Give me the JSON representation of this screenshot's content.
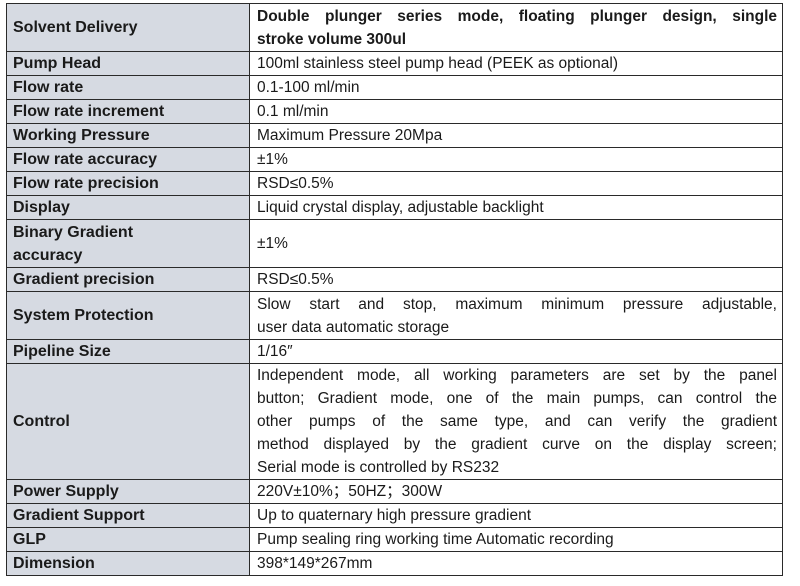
{
  "spec_table": {
    "rows": [
      {
        "label": "Solvent Delivery",
        "value_lines": [
          "Double plunger series mode, floating plunger design, single",
          "stroke volume 300ul"
        ]
      },
      {
        "label": "Pump Head",
        "value": "100ml stainless steel pump head (PEEK as optional)"
      },
      {
        "label": "Flow rate",
        "value": "0.1-100 ml/min"
      },
      {
        "label": "Flow rate increment",
        "value": "0.1 ml/min"
      },
      {
        "label": "Working Pressure",
        "value": "Maximum Pressure 20Mpa"
      },
      {
        "label": "Flow rate accuracy",
        "value": "±1%"
      },
      {
        "label": "Flow rate precision",
        "value": "RSD≤0.5%"
      },
      {
        "label": "Display",
        "value": "Liquid crystal display, adjustable backlight"
      },
      {
        "label_lines": [
          "Binary Gradient",
          "accuracy"
        ],
        "value": "±1%"
      },
      {
        "label": "Gradient precision",
        "value": "RSD≤0.5%"
      },
      {
        "label": "System Protection",
        "value_lines": [
          "Slow start and stop, maximum minimum pressure adjustable,",
          "user data automatic storage"
        ]
      },
      {
        "label": "Pipeline Size",
        "value": "1/16″"
      },
      {
        "label": "Control",
        "value_lines": [
          "Independent mode, all working parameters are set by the panel",
          "button; Gradient mode, one of the main pumps, can control the",
          "other pumps of the same type, and can verify the gradient",
          "method displayed by the gradient curve on the display screen;",
          "Serial mode is controlled by RS232"
        ]
      },
      {
        "label": "Power Supply",
        "value": "220V±10%；50HZ；300W"
      },
      {
        "label": "Gradient Support",
        "value": "Up to quaternary high pressure gradient"
      },
      {
        "label": "GLP",
        "value": "Pump sealing ring working time Automatic recording"
      },
      {
        "label": "Dimension",
        "value": "398*149*267mm"
      }
    ]
  },
  "colors": {
    "label_background": "#d6dae2",
    "border": "#2a2a2a",
    "text": "#1a1a1a"
  }
}
